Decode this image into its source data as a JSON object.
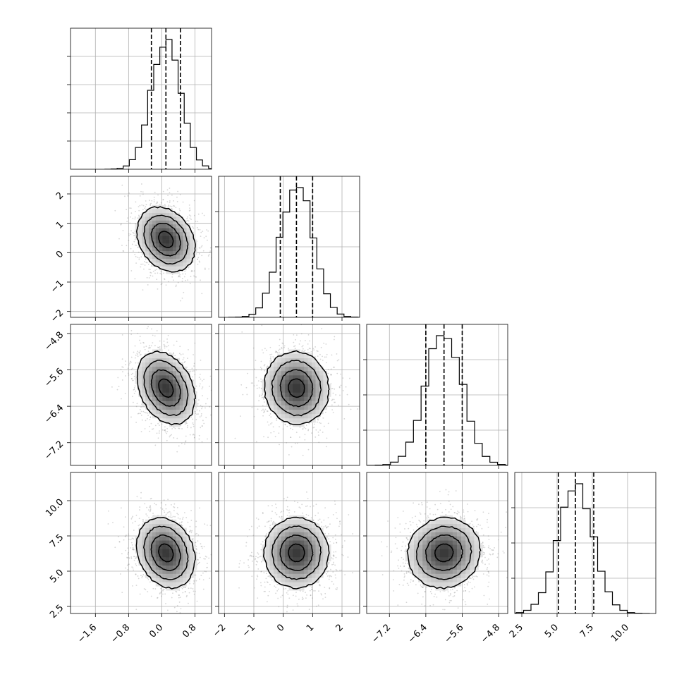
{
  "chart_data": {
    "type": "corner",
    "grid": true,
    "params": [
      {
        "key": "p0",
        "range": [
          -2.2,
          1.2
        ],
        "ticks": [
          -1.6,
          -0.8,
          0.0,
          0.8
        ],
        "tick_labels": [
          "−1.6",
          "−0.8",
          "0.0",
          "0.8"
        ],
        "median": 0.1,
        "sigma": 0.35,
        "quantiles": [
          -0.25,
          0.1,
          0.45
        ]
      },
      {
        "key": "p1",
        "range": [
          -2.2,
          2.6
        ],
        "ticks": [
          -2,
          -1,
          0,
          1,
          2
        ],
        "tick_labels": [
          "−2",
          "−1",
          "0",
          "1",
          "2"
        ],
        "median": 0.45,
        "sigma": 0.55,
        "quantiles": [
          -0.1,
          0.45,
          1.0
        ]
      },
      {
        "key": "p2",
        "range": [
          -7.7,
          -4.6
        ],
        "ticks": [
          -7.2,
          -6.4,
          -5.6,
          -4.8
        ],
        "tick_labels": [
          "−7.2",
          "−6.4",
          "−5.6",
          "−4.8"
        ],
        "median": -6.0,
        "sigma": 0.4,
        "quantiles": [
          -6.4,
          -6.0,
          -5.6
        ]
      },
      {
        "key": "p3",
        "range": [
          2.0,
          12.0
        ],
        "ticks": [
          2.5,
          5.0,
          7.5,
          10.0
        ],
        "tick_labels": [
          "2.5",
          "5.0",
          "7.5",
          "10.0"
        ],
        "median": 6.3,
        "sigma": 1.25,
        "quantiles": [
          5.1,
          6.3,
          7.6
        ]
      }
    ],
    "diag_hist_ticks": {
      "p0": [
        0.2,
        0.4,
        0.6,
        0.8
      ],
      "p1": [
        0.25,
        0.5,
        0.75
      ],
      "p2": [
        0.25,
        0.5,
        0.75
      ],
      "p3": [
        0.25,
        0.5,
        0.75
      ]
    },
    "correlations": [
      {
        "row": 1,
        "col": 0,
        "rho": -0.25
      },
      {
        "row": 2,
        "col": 0,
        "rho": -0.3
      },
      {
        "row": 2,
        "col": 1,
        "rho": -0.05
      },
      {
        "row": 3,
        "col": 0,
        "rho": -0.2
      },
      {
        "row": 3,
        "col": 1,
        "rho": 0.0
      },
      {
        "row": 3,
        "col": 2,
        "rho": 0.05
      }
    ],
    "contour_levels_sigma": [
      0.5,
      1.0,
      1.5,
      2.0
    ]
  }
}
